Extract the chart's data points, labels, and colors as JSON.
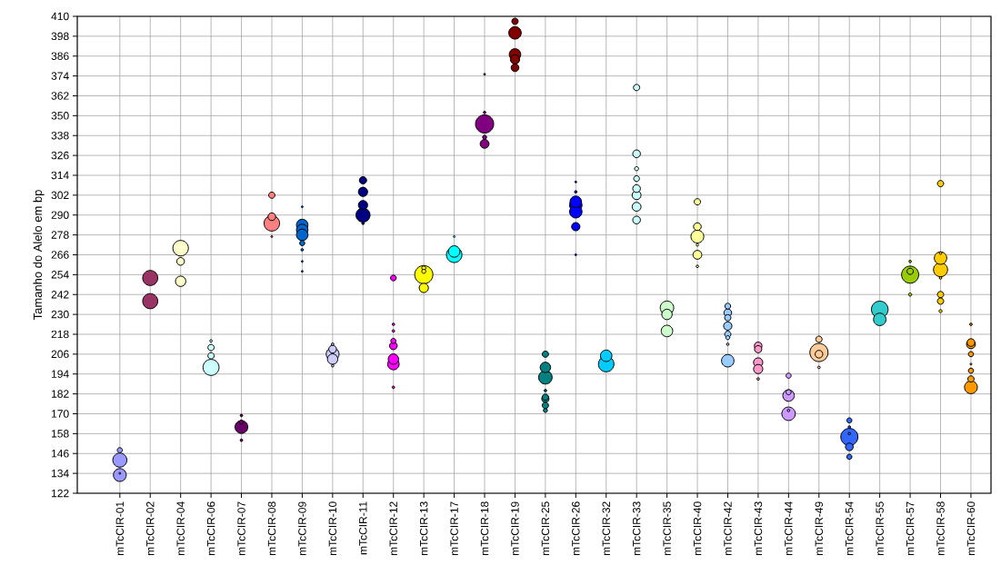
{
  "chart_data": {
    "type": "bubble",
    "ylabel": "Tamanho do Alelo em bp",
    "categories": [
      "mTcCIR-01",
      "mTcCIR-02",
      "mTcCIR-04",
      "mTcCIR-06",
      "mTcCIR-07",
      "mTcCIR-08",
      "mTcCIR-09",
      "mTcCIR-10",
      "mTcCIR-11",
      "mTcCIR-12",
      "mTcCIR-13",
      "mTcCIR-17",
      "mTcCIR-18",
      "mTcCIR-19",
      "mTcCIR-25",
      "mTcCIR-26",
      "mTcCIR-32",
      "mTcCIR-33",
      "mTcCIR-35",
      "mTcCIR-40",
      "mTcCIR-42",
      "mTcCIR-43",
      "mTcCIR-44",
      "mTcCIR-49",
      "mTcCIR-54",
      "mTcCIR-55",
      "mTcCIR-57",
      "mTcCIR-58",
      "mTcCIR-60"
    ],
    "ylim": [
      122,
      410
    ],
    "yticks": [
      122,
      134,
      146,
      158,
      170,
      182,
      194,
      206,
      218,
      230,
      242,
      254,
      266,
      278,
      290,
      302,
      314,
      326,
      338,
      350,
      362,
      374,
      386,
      398,
      410
    ],
    "grid": true,
    "marker": "circle",
    "series": [
      {
        "color": "#9999ff",
        "x": [
          "mTcCIR-01",
          "mTcCIR-01",
          "mTcCIR-01",
          "mTcCIR-01"
        ],
        "values": [
          148,
          142,
          133,
          134
        ],
        "sizes": [
          0.08,
          0.6,
          0.5,
          0.01
        ]
      },
      {
        "color": "#993366",
        "x": [
          "mTcCIR-02",
          "mTcCIR-02"
        ],
        "values": [
          252,
          238
        ],
        "sizes": [
          0.69,
          0.69
        ]
      },
      {
        "color": "#ffffcc",
        "x": [
          "mTcCIR-04",
          "mTcCIR-04",
          "mTcCIR-04"
        ],
        "values": [
          270,
          262,
          250
        ],
        "sizes": [
          0.73,
          0.18,
          0.33
        ]
      },
      {
        "color": "#ccffff",
        "x": [
          "mTcCIR-06",
          "mTcCIR-06",
          "mTcCIR-06",
          "mTcCIR-06"
        ],
        "values": [
          214,
          210,
          205,
          198
        ],
        "sizes": [
          0.02,
          0.12,
          0.12,
          0.78
        ]
      },
      {
        "color": "#660066",
        "x": [
          "mTcCIR-07",
          "mTcCIR-07",
          "mTcCIR-07",
          "mTcCIR-07"
        ],
        "values": [
          169,
          165,
          162,
          154
        ],
        "sizes": [
          0.02,
          0.05,
          0.5,
          0.02
        ]
      },
      {
        "color": "#ff8080",
        "x": [
          "mTcCIR-08",
          "mTcCIR-08",
          "mTcCIR-08",
          "mTcCIR-08"
        ],
        "values": [
          302,
          289,
          285,
          277
        ],
        "sizes": [
          0.12,
          0.18,
          0.73,
          0.01
        ]
      },
      {
        "color": "#0066cc",
        "x": [
          "mTcCIR-09",
          "mTcCIR-09",
          "mTcCIR-09",
          "mTcCIR-09",
          "mTcCIR-09",
          "mTcCIR-09",
          "mTcCIR-09",
          "mTcCIR-09"
        ],
        "values": [
          295,
          284,
          281,
          278,
          273,
          269,
          262,
          256
        ],
        "sizes": [
          0.01,
          0.4,
          0.4,
          0.4,
          0.08,
          0.02,
          0.01,
          0.01
        ]
      },
      {
        "color": "#ccccff",
        "x": [
          "mTcCIR-10",
          "mTcCIR-10",
          "mTcCIR-10",
          "mTcCIR-10",
          "mTcCIR-10"
        ],
        "values": [
          212,
          209,
          206,
          203,
          199
        ],
        "sizes": [
          0.02,
          0.18,
          0.5,
          0.33,
          0.02
        ]
      },
      {
        "color": "#000080",
        "x": [
          "mTcCIR-11",
          "mTcCIR-11",
          "mTcCIR-11",
          "mTcCIR-11",
          "mTcCIR-11"
        ],
        "values": [
          311,
          304,
          296,
          290,
          285
        ],
        "sizes": [
          0.16,
          0.26,
          0.26,
          0.6,
          0.02
        ]
      },
      {
        "color": "#ff00ff",
        "x": [
          "mTcCIR-12",
          "mTcCIR-12",
          "mTcCIR-12",
          "mTcCIR-12",
          "mTcCIR-12",
          "mTcCIR-12",
          "mTcCIR-12",
          "mTcCIR-12"
        ],
        "values": [
          252,
          224,
          220,
          214,
          211,
          203,
          200,
          186
        ],
        "sizes": [
          0.1,
          0.02,
          0.02,
          0.08,
          0.18,
          0.33,
          0.4,
          0.02
        ]
      },
      {
        "color": "#ffff00",
        "x": [
          "mTcCIR-13",
          "mTcCIR-13",
          "mTcCIR-13",
          "mTcCIR-13"
        ],
        "values": [
          258,
          256,
          254,
          246
        ],
        "sizes": [
          0.05,
          0.05,
          1.0,
          0.26
        ]
      },
      {
        "color": "#00ffff",
        "x": [
          "mTcCIR-17",
          "mTcCIR-17",
          "mTcCIR-17"
        ],
        "values": [
          277,
          268,
          266
        ],
        "sizes": [
          0.01,
          0.4,
          0.73
        ]
      },
      {
        "color": "#800080",
        "x": [
          "mTcCIR-18",
          "mTcCIR-18",
          "mTcCIR-18",
          "mTcCIR-18",
          "mTcCIR-18"
        ],
        "values": [
          375,
          352,
          345,
          337,
          333
        ],
        "sizes": [
          0.01,
          0.02,
          1.0,
          0.05,
          0.24
        ]
      },
      {
        "color": "#800000",
        "x": [
          "mTcCIR-19",
          "mTcCIR-19",
          "mTcCIR-19",
          "mTcCIR-19",
          "mTcCIR-19"
        ],
        "values": [
          407,
          400,
          387,
          384,
          379
        ],
        "sizes": [
          0.12,
          0.47,
          0.4,
          0.26,
          0.18
        ]
      },
      {
        "color": "#008080",
        "x": [
          "mTcCIR-25",
          "mTcCIR-25",
          "mTcCIR-25",
          "mTcCIR-25",
          "mTcCIR-25",
          "mTcCIR-25",
          "mTcCIR-25",
          "mTcCIR-25"
        ],
        "values": [
          206,
          198,
          192,
          184,
          180,
          179,
          175,
          172
        ],
        "sizes": [
          0.12,
          0.33,
          0.55,
          0.02,
          0.12,
          0.16,
          0.12,
          0.05
        ]
      },
      {
        "color": "#0000ff",
        "x": [
          "mTcCIR-26",
          "mTcCIR-26",
          "mTcCIR-26",
          "mTcCIR-26",
          "mTcCIR-26",
          "mTcCIR-26",
          "mTcCIR-26"
        ],
        "values": [
          310,
          304,
          298,
          296,
          292,
          283,
          266
        ],
        "sizes": [
          0.01,
          0.02,
          0.4,
          0.47,
          0.47,
          0.21,
          0.01
        ]
      },
      {
        "color": "#00ccff",
        "x": [
          "mTcCIR-32",
          "mTcCIR-32"
        ],
        "values": [
          205,
          200
        ],
        "sizes": [
          0.4,
          0.73
        ]
      },
      {
        "color": "#ccffff",
        "x": [
          "mTcCIR-33",
          "mTcCIR-33",
          "mTcCIR-33",
          "mTcCIR-33",
          "mTcCIR-33",
          "mTcCIR-33",
          "mTcCIR-33",
          "mTcCIR-33"
        ],
        "values": [
          367,
          327,
          318,
          312,
          306,
          302,
          295,
          287
        ],
        "sizes": [
          0.12,
          0.18,
          0.05,
          0.1,
          0.18,
          0.24,
          0.24,
          0.18
        ]
      },
      {
        "color": "#ccffcc",
        "x": [
          "mTcCIR-35",
          "mTcCIR-35",
          "mTcCIR-35"
        ],
        "values": [
          234,
          230,
          220
        ],
        "sizes": [
          0.55,
          0.33,
          0.4
        ]
      },
      {
        "color": "#ffff99",
        "x": [
          "mTcCIR-40",
          "mTcCIR-40",
          "mTcCIR-40",
          "mTcCIR-40",
          "mTcCIR-40",
          "mTcCIR-40"
        ],
        "values": [
          298,
          283,
          277,
          272,
          266,
          259
        ],
        "sizes": [
          0.12,
          0.18,
          0.5,
          0.02,
          0.24,
          0.02
        ]
      },
      {
        "color": "#99ccff",
        "x": [
          "mTcCIR-42",
          "mTcCIR-42",
          "mTcCIR-42",
          "mTcCIR-42",
          "mTcCIR-42",
          "mTcCIR-42",
          "mTcCIR-42",
          "mTcCIR-42"
        ],
        "values": [
          235,
          231,
          228,
          223,
          218,
          216,
          212,
          202
        ],
        "sizes": [
          0.1,
          0.18,
          0.12,
          0.21,
          0.12,
          0.05,
          0.02,
          0.47
        ]
      },
      {
        "color": "#ff99cc",
        "x": [
          "mTcCIR-43",
          "mTcCIR-43",
          "mTcCIR-43",
          "mTcCIR-43",
          "mTcCIR-43"
        ],
        "values": [
          211,
          209,
          201,
          197,
          191
        ],
        "sizes": [
          0.18,
          0.16,
          0.26,
          0.26,
          0.02
        ]
      },
      {
        "color": "#cc99ff",
        "x": [
          "mTcCIR-44",
          "mTcCIR-44",
          "mTcCIR-44",
          "mTcCIR-44",
          "mTcCIR-44"
        ],
        "values": [
          193,
          183,
          181,
          172,
          170
        ],
        "sizes": [
          0.08,
          0.08,
          0.4,
          0.02,
          0.55
        ]
      },
      {
        "color": "#ffcc99",
        "x": [
          "mTcCIR-49",
          "mTcCIR-49",
          "mTcCIR-49",
          "mTcCIR-49"
        ],
        "values": [
          215,
          207,
          206,
          198
        ],
        "sizes": [
          0.12,
          1.0,
          0.18,
          0.02
        ]
      },
      {
        "color": "#3366ff",
        "x": [
          "mTcCIR-54",
          "mTcCIR-54",
          "mTcCIR-54",
          "mTcCIR-54",
          "mTcCIR-54",
          "mTcCIR-54"
        ],
        "values": [
          166,
          162,
          158,
          156,
          150,
          144
        ],
        "sizes": [
          0.08,
          0.02,
          0.02,
          0.89,
          0.18,
          0.08
        ]
      },
      {
        "color": "#33cccc",
        "x": [
          "mTcCIR-55",
          "mTcCIR-55"
        ],
        "values": [
          233,
          227
        ],
        "sizes": [
          0.84,
          0.47
        ]
      },
      {
        "color": "#99cc00",
        "x": [
          "mTcCIR-57",
          "mTcCIR-57",
          "mTcCIR-57",
          "mTcCIR-57"
        ],
        "values": [
          262,
          256,
          254,
          242
        ],
        "sizes": [
          0.02,
          0.12,
          0.89,
          0.03
        ]
      },
      {
        "color": "#ffcc00",
        "x": [
          "mTcCIR-58",
          "mTcCIR-58",
          "mTcCIR-58",
          "mTcCIR-58",
          "mTcCIR-58",
          "mTcCIR-58",
          "mTcCIR-58",
          "mTcCIR-58"
        ],
        "values": [
          309,
          267,
          264,
          257,
          252,
          242,
          238,
          232
        ],
        "sizes": [
          0.12,
          0.02,
          0.47,
          0.6,
          0.02,
          0.12,
          0.12,
          0.03
        ]
      },
      {
        "color": "#ff9900",
        "x": [
          "mTcCIR-60",
          "mTcCIR-60",
          "mTcCIR-60",
          "mTcCIR-60",
          "mTcCIR-60",
          "mTcCIR-60",
          "mTcCIR-60",
          "mTcCIR-60"
        ],
        "values": [
          224,
          213,
          212,
          206,
          200,
          196,
          191,
          186
        ],
        "sizes": [
          0.02,
          0.18,
          0.24,
          0.08,
          0.01,
          0.08,
          0.12,
          0.5
        ]
      }
    ]
  }
}
